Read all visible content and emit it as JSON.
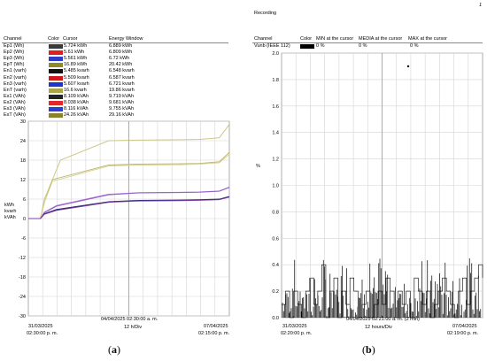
{
  "left": {
    "headers": {
      "channel": "Channel",
      "color": "Color",
      "cursor": "Cursor",
      "window": "Energy Window"
    },
    "rows": [
      {
        "channel": "Ep1 (Wh)",
        "color": "#3a3a3a",
        "cursor": "5.724 kWh",
        "window": "6.889 kWh"
      },
      {
        "channel": "Ep2 (Wh)",
        "color": "#e02020",
        "cursor": "5.61 kWh",
        "window": "6.809 kWh"
      },
      {
        "channel": "Ep3 (Wh)",
        "color": "#2d3ec9",
        "cursor": "5.561 kWh",
        "window": "6.72 kWh"
      },
      {
        "channel": "EpT (Wh)",
        "color": "#8e8a2a",
        "cursor": "16.89 kWh",
        "window": "20.42 kWh"
      },
      {
        "channel": "En1 (varh)",
        "color": "#111111",
        "cursor": "5.485 kvarh",
        "window": "6.548 kvarh"
      },
      {
        "channel": "En2 (varh)",
        "color": "#d01818",
        "cursor": "5.509 kvarh",
        "window": "6.587 kvarh"
      },
      {
        "channel": "En3 (varh)",
        "color": "#2035c8",
        "cursor": "5.607 kvarh",
        "window": "6.721 kvarh"
      },
      {
        "channel": "EnT (varh)",
        "color": "#a8a64a",
        "cursor": "16.6 kvarh",
        "window": "19.86 kvarh"
      },
      {
        "channel": "Es1 (VAh)",
        "color": "#222222",
        "cursor": "8.109 kVAh",
        "window": "9.719 kVAh"
      },
      {
        "channel": "Es2 (VAh)",
        "color": "#e02a2a",
        "cursor": "8.038 kVAh",
        "window": "9.681 kVAh"
      },
      {
        "channel": "Es3 (VAh)",
        "color": "#2840d0",
        "cursor": "8.116 kVAh",
        "window": "9.755 kVAh"
      },
      {
        "channel": "EsT (VAh)",
        "color": "#8a8230",
        "cursor": "24.26 kVAh",
        "window": "29.16 kVAh"
      }
    ],
    "ylabel": [
      "kWh",
      "kvarh",
      "kVAh"
    ],
    "cursor_time": "04/04/2025 02:30:00 a. m.",
    "start_date": "31/03/2025",
    "start_time": "02:30:00 p. m.",
    "div": "12 h/Div",
    "end_date": "07/04/2025",
    "end_time": "02:15:00 p. m.",
    "caption_letter": "a"
  },
  "right": {
    "title": "Recording",
    "page_number": "1",
    "headers": {
      "channel": "Channel",
      "color": "Color",
      "min": "MIN at the cursor",
      "media": "MEDIA at the cursor",
      "max": "MAX at the cursor"
    },
    "rows": [
      {
        "channel": "Vunb (IEEE 112)",
        "color": "#000000",
        "min": "0 %",
        "media": "0 %",
        "max": "0 %"
      }
    ],
    "ylabel": "%",
    "cursor_time": "04/04/2025 02:21:00 a. m. (2 min)",
    "start_date": "31/03/2025",
    "start_time": "02:20:00 p. m.",
    "div": "12 hours/Div",
    "end_date": "07/04/2025",
    "end_time": "02:19:00 p. m.",
    "caption_letter": "b"
  },
  "chart_data": [
    {
      "type": "line",
      "ylim": [
        -30,
        30
      ],
      "yticks": [
        30,
        24,
        18,
        12,
        6,
        0,
        -6,
        -12,
        -18,
        -24,
        -30
      ],
      "ylabel": "kWh / kvarh / kVAh",
      "x_divisions": 14,
      "series": [
        {
          "name": "EsT (VAh)",
          "color": "#c8c27a",
          "x": [
            0,
            6,
            8,
            16,
            40,
            55,
            75,
            85,
            95,
            100
          ],
          "values": [
            0,
            0,
            6,
            18,
            24,
            24.2,
            24.3,
            24.4,
            24.9,
            29
          ]
        },
        {
          "name": "EpT (Wh)",
          "color": "#b9b46a",
          "x": [
            0,
            6,
            8,
            12,
            40,
            55,
            75,
            85,
            95,
            100
          ],
          "values": [
            0,
            0,
            5,
            12,
            16.5,
            16.8,
            16.9,
            17,
            17.5,
            20.4
          ]
        },
        {
          "name": "EnT (varh)",
          "color": "#d6d08a",
          "x": [
            0,
            6,
            8,
            12,
            40,
            55,
            75,
            85,
            95,
            100
          ],
          "values": [
            0,
            0,
            5,
            11.5,
            16.2,
            16.5,
            16.6,
            16.8,
            17.2,
            19.8
          ]
        },
        {
          "name": "Es3 (VAh)",
          "color": "#b070d8",
          "x": [
            0,
            6,
            8,
            14,
            40,
            55,
            75,
            85,
            95,
            100
          ],
          "values": [
            0,
            0,
            2,
            4,
            7.5,
            8,
            8.1,
            8.2,
            8.5,
            9.7
          ]
        },
        {
          "name": "Es2 (VAh)",
          "color": "#9060c8",
          "x": [
            0,
            6,
            8,
            14,
            40,
            55,
            75,
            85,
            95,
            100
          ],
          "values": [
            0,
            0,
            1.8,
            3.8,
            7.3,
            7.9,
            8,
            8.1,
            8.4,
            9.6
          ]
        },
        {
          "name": "Ep1 (Wh)",
          "color": "#303060",
          "x": [
            0,
            6,
            8,
            14,
            40,
            55,
            75,
            85,
            95,
            100
          ],
          "values": [
            0,
            0,
            1.5,
            2.8,
            5.2,
            5.6,
            5.7,
            5.8,
            6,
            6.8
          ]
        },
        {
          "name": "En3 (varh)",
          "color": "#20208a",
          "x": [
            0,
            6,
            8,
            14,
            40,
            55,
            75,
            85,
            95,
            100
          ],
          "values": [
            0,
            0,
            1.4,
            2.6,
            5.1,
            5.5,
            5.6,
            5.7,
            5.9,
            6.7
          ]
        },
        {
          "name": "En2 (varh)",
          "color": "#8040a0",
          "x": [
            0,
            6,
            8,
            14,
            40,
            55,
            75,
            85,
            95,
            100
          ],
          "values": [
            0,
            0,
            1.3,
            2.5,
            5,
            5.4,
            5.5,
            5.6,
            5.8,
            6.6
          ]
        }
      ]
    },
    {
      "type": "line",
      "ylim": [
        0,
        2.0
      ],
      "yticks": [
        2.0,
        1.8,
        1.6,
        1.4,
        1.2,
        1.0,
        0.8,
        0.6,
        0.4,
        0.2,
        0
      ],
      "ylabel": "%",
      "x_divisions": 14,
      "series": [
        {
          "name": "Vunb (IEEE 112)",
          "color": "#000000",
          "x": [
            0,
            2,
            4,
            6,
            8,
            10,
            12,
            14,
            16,
            18,
            20,
            22,
            24,
            26,
            28,
            30,
            32,
            34,
            36,
            38,
            40,
            42,
            44,
            46,
            48,
            50,
            52,
            54,
            56,
            58,
            60,
            62,
            64,
            66,
            68,
            70,
            72,
            74,
            76,
            78,
            80,
            82,
            84,
            86,
            88,
            90,
            92,
            94,
            96,
            98,
            100
          ],
          "values": [
            0.1,
            0.2,
            0,
            0.2,
            0.1,
            0,
            0.2,
            0.3,
            0.1,
            0.2,
            0.4,
            0,
            0.2,
            0.3,
            0,
            0.2,
            0.1,
            0.3,
            0.2,
            0,
            0.1,
            0.2,
            0,
            0.1,
            0.2,
            0.1,
            0.3,
            0.2,
            0,
            0.2,
            0.1,
            0.2,
            0,
            0.3,
            0.2,
            0.1,
            0.2,
            0,
            0.1,
            0.2,
            0.3,
            0.2,
            0.1,
            0,
            0.2,
            0.3,
            0.1,
            0.2,
            0.3,
            0.4,
            0.3
          ]
        },
        {
          "name": "outlier",
          "color": "#000000",
          "x": [
            63
          ],
          "values": [
            1.9
          ]
        }
      ]
    }
  ]
}
